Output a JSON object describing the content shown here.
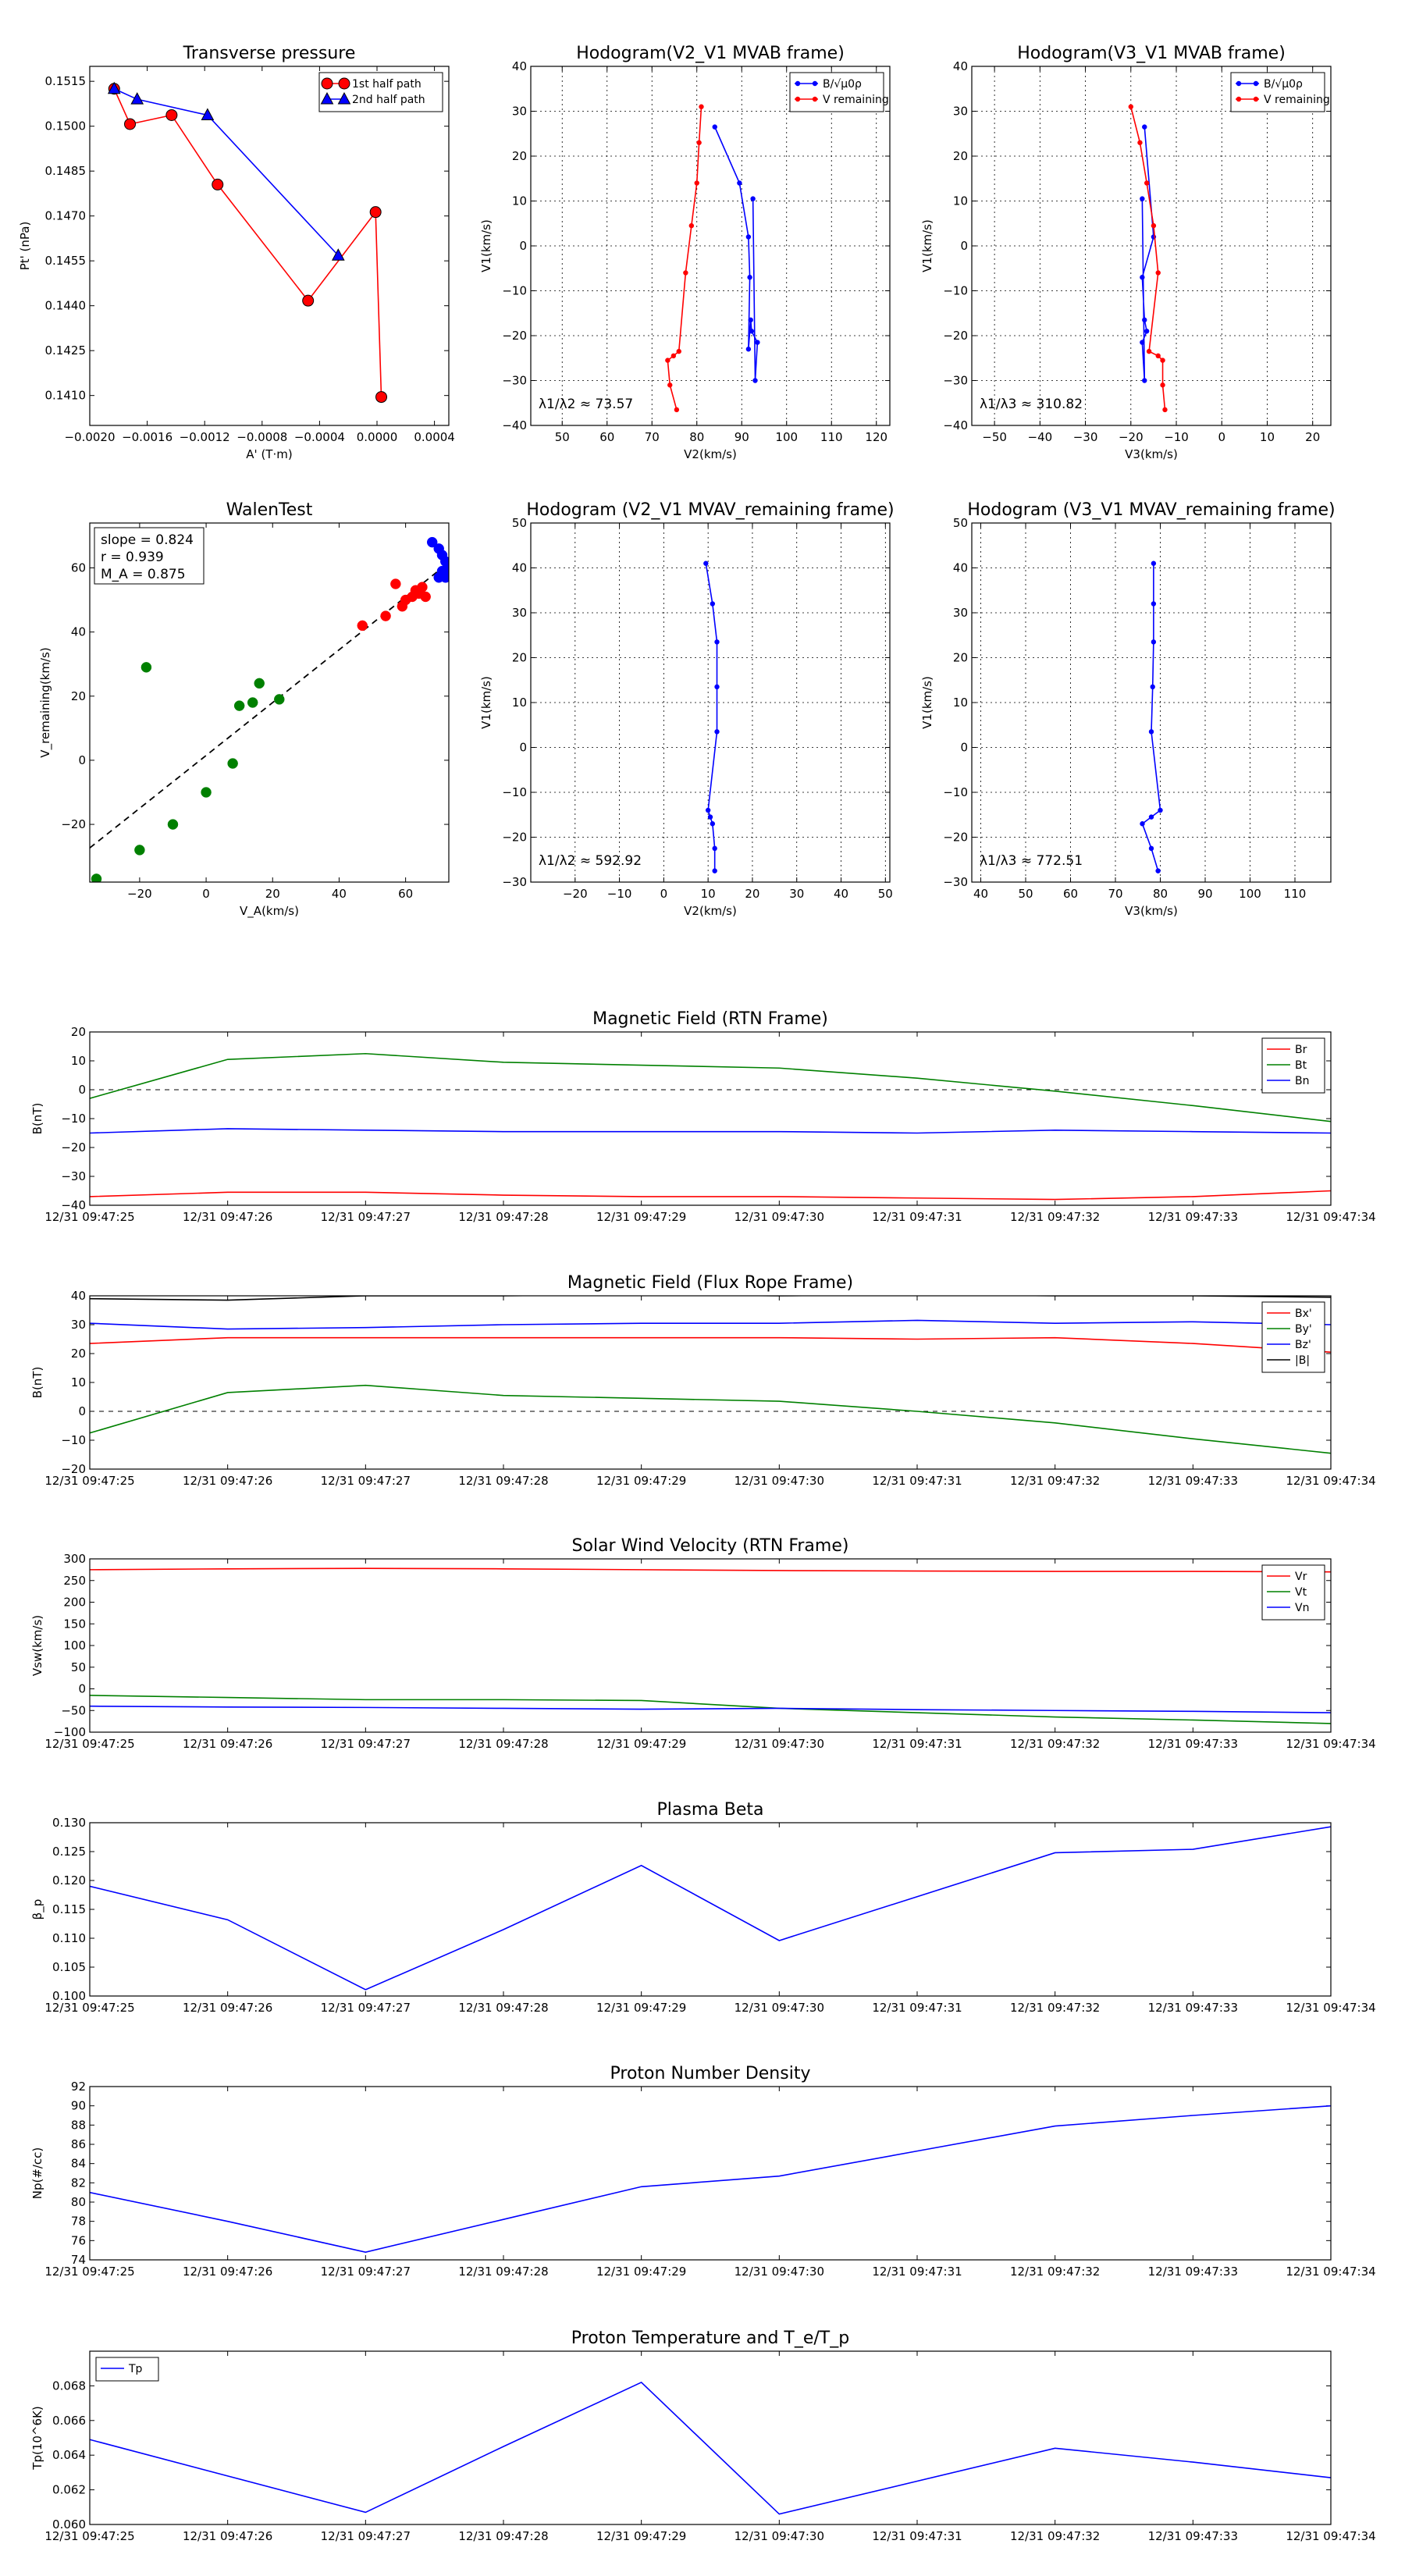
{
  "colors": {
    "red": "#ff0000",
    "green": "#008000",
    "blue": "#0000ff",
    "black": "#000000"
  },
  "chart_data": [
    {
      "type": "line",
      "title": "Transverse pressure",
      "xlabel": "A' (T·m)",
      "ylabel": "Pt' (nPa)",
      "xlim": [
        -0.002,
        0.0005
      ],
      "ylim": [
        0.14,
        0.152
      ],
      "xticks": [
        -0.002,
        -0.0016,
        -0.0012,
        -0.0008,
        -0.0004,
        0,
        0.0004
      ],
      "xtick_labels": [
        "−0.0020",
        "−0.0016",
        "−0.0012",
        "−0.0008",
        "−0.0004",
        "0.0000",
        "0.0004"
      ],
      "yticks": [
        0.141,
        0.1425,
        0.144,
        0.1455,
        0.147,
        0.1485,
        0.15,
        0.1515
      ],
      "ytick_labels": [
        "0.1410",
        "0.1425",
        "0.1440",
        "0.1455",
        "0.1470",
        "0.1485",
        "0.1500",
        "0.1515"
      ],
      "grid": false,
      "legend_loc": "top-right",
      "series": [
        {
          "name": "1st half path",
          "color": "red",
          "marker": "circle",
          "points": [
            [
              -0.00183,
              0.15125
            ],
            [
              -0.00172,
              0.15007
            ],
            [
              -0.00143,
              0.15037
            ],
            [
              -0.00111,
              0.14805
            ],
            [
              -0.00048,
              0.14417
            ],
            [
              -1e-05,
              0.14713
            ],
            [
              3e-05,
              0.14095
            ]
          ]
        },
        {
          "name": "2nd half path",
          "color": "blue",
          "marker": "triangle",
          "points": [
            [
              -0.00183,
              0.15125
            ],
            [
              -0.00167,
              0.1509
            ],
            [
              -0.00118,
              0.15037
            ],
            [
              -0.00027,
              0.14568
            ]
          ]
        }
      ]
    },
    {
      "type": "line",
      "title": "Hodogram(V2_V1 MVAB frame)",
      "xlabel": "V2(km/s)",
      "ylabel": "V1(km/s)",
      "xlim": [
        43,
        123
      ],
      "ylim": [
        -40,
        40
      ],
      "xticks": [
        50,
        60,
        70,
        80,
        90,
        100,
        110,
        120
      ],
      "yticks": [
        -40,
        -30,
        -20,
        -10,
        0,
        10,
        20,
        30,
        40
      ],
      "grid": true,
      "legend_loc": "top-right",
      "annotation": "λ1/λ2 ≈ 73.57",
      "series": [
        {
          "name": "B/√μ0ρ",
          "color": "blue",
          "marker": "dot",
          "points": [
            [
              84,
              26.5
            ],
            [
              89.5,
              14
            ],
            [
              91.5,
              2
            ],
            [
              91.8,
              -7
            ],
            [
              91.5,
              -23
            ],
            [
              92,
              -16.5
            ],
            [
              92.2,
              -19
            ],
            [
              93.5,
              -21.5
            ],
            [
              93,
              -30
            ],
            [
              92.5,
              10.5
            ]
          ]
        },
        {
          "name": "V remaining",
          "color": "red",
          "marker": "dot",
          "points": [
            [
              81,
              31
            ],
            [
              80.5,
              23
            ],
            [
              80,
              14
            ],
            [
              78.8,
              4.5
            ],
            [
              77.5,
              -6
            ],
            [
              76,
              -23.5
            ],
            [
              74.8,
              -24.5
            ],
            [
              73.5,
              -25.5
            ],
            [
              74,
              -31
            ],
            [
              75.5,
              -36.5
            ]
          ]
        }
      ]
    },
    {
      "type": "line",
      "title": "Hodogram(V3_V1 MVAB frame)",
      "xlabel": "V3(km/s)",
      "ylabel": "V1(km/s)",
      "xlim": [
        -55,
        24
      ],
      "ylim": [
        -40,
        40
      ],
      "xticks": [
        -50,
        -40,
        -30,
        -20,
        -10,
        0,
        10,
        20
      ],
      "yticks": [
        -40,
        -30,
        -20,
        -10,
        0,
        10,
        20,
        30,
        40
      ],
      "grid": true,
      "legend_loc": "top-right",
      "annotation": "λ1/λ3 ≈ 310.82",
      "series": [
        {
          "name": "B/√μ0ρ",
          "color": "blue",
          "marker": "dot",
          "points": [
            [
              -17,
              26.5
            ],
            [
              -15,
              2
            ],
            [
              -17.5,
              -7
            ],
            [
              -17,
              -16.5
            ],
            [
              -16.5,
              -19
            ],
            [
              -17.5,
              -21.5
            ],
            [
              -17,
              -30
            ],
            [
              -17.5,
              10.5
            ]
          ]
        },
        {
          "name": "V remaining",
          "color": "red",
          "marker": "dot",
          "points": [
            [
              -20,
              31
            ],
            [
              -18,
              23
            ],
            [
              -16.5,
              14
            ],
            [
              -15,
              4.5
            ],
            [
              -14,
              -6
            ],
            [
              -16,
              -23.5
            ],
            [
              -14,
              -24.5
            ],
            [
              -13,
              -25.5
            ],
            [
              -13,
              -31
            ],
            [
              -12.5,
              -36.5
            ]
          ]
        }
      ]
    },
    {
      "type": "scatter",
      "title": "WalenTest",
      "xlabel": "V_A(km/s)",
      "ylabel": "V_remaining(km/s)",
      "xlim": [
        -35,
        73
      ],
      "ylim": [
        -38,
        74
      ],
      "xticks": [
        -20,
        0,
        20,
        40,
        60
      ],
      "yticks": [
        -20,
        0,
        20,
        40,
        60
      ],
      "grid": false,
      "fit_line": {
        "slope": 0.824,
        "intercept": 1.5,
        "style": "dashed"
      },
      "stats": [
        "slope = 0.824",
        "r = 0.939",
        "M_A = 0.875"
      ],
      "series": [
        {
          "name": "green",
          "color": "green",
          "points": [
            [
              -33,
              -37
            ],
            [
              -20,
              -28
            ],
            [
              -18,
              29
            ],
            [
              -10,
              -20
            ],
            [
              0,
              -10
            ],
            [
              8,
              -1
            ],
            [
              10,
              17
            ],
            [
              14,
              18
            ],
            [
              16,
              24
            ],
            [
              22,
              19
            ]
          ]
        },
        {
          "name": "red",
          "color": "red",
          "points": [
            [
              47,
              42
            ],
            [
              54,
              45
            ],
            [
              57,
              55
            ],
            [
              59,
              48
            ],
            [
              60,
              50
            ],
            [
              62,
              51
            ],
            [
              63,
              53
            ],
            [
              64,
              52
            ],
            [
              65,
              54
            ],
            [
              66,
              51
            ]
          ]
        },
        {
          "name": "blue",
          "color": "blue",
          "points": [
            [
              68,
              68
            ],
            [
              70,
              66
            ],
            [
              71,
              64
            ],
            [
              72,
              62
            ],
            [
              73,
              60
            ],
            [
              70,
              57
            ],
            [
              72,
              57
            ],
            [
              73,
              58
            ],
            [
              74,
              61
            ],
            [
              71,
              59
            ]
          ]
        }
      ]
    },
    {
      "type": "line",
      "title": "Hodogram (V2_V1 MVAV_remaining frame)",
      "xlabel": "V2(km/s)",
      "ylabel": "V1(km/s)",
      "xlim": [
        -30,
        51
      ],
      "ylim": [
        -30,
        50
      ],
      "xticks": [
        -20,
        -10,
        0,
        10,
        20,
        30,
        40,
        50
      ],
      "yticks": [
        -30,
        -20,
        -10,
        0,
        10,
        20,
        30,
        40,
        50
      ],
      "grid": true,
      "annotation": "λ1/λ2 ≈ 592.92",
      "series": [
        {
          "name": "V",
          "color": "blue",
          "marker": "dot",
          "points": [
            [
              9.5,
              41
            ],
            [
              11,
              32
            ],
            [
              12,
              23.5
            ],
            [
              12,
              13.5
            ],
            [
              12,
              3.5
            ],
            [
              10,
              -14
            ],
            [
              10.5,
              -15.5
            ],
            [
              11,
              -17
            ],
            [
              11.5,
              -22.5
            ],
            [
              11.5,
              -27.5
            ]
          ]
        }
      ]
    },
    {
      "type": "line",
      "title": "Hodogram (V3_V1 MVAV_remaining frame)",
      "xlabel": "V3(km/s)",
      "ylabel": "V1(km/s)",
      "xlim": [
        38,
        118
      ],
      "ylim": [
        -30,
        50
      ],
      "xticks": [
        40,
        50,
        60,
        70,
        80,
        90,
        100,
        110
      ],
      "yticks": [
        -30,
        -20,
        -10,
        0,
        10,
        20,
        30,
        40,
        50
      ],
      "grid": true,
      "annotation": "λ1/λ3 ≈ 772.51",
      "series": [
        {
          "name": "V",
          "color": "blue",
          "marker": "dot",
          "points": [
            [
              78.5,
              41
            ],
            [
              78.5,
              32
            ],
            [
              78.5,
              23.5
            ],
            [
              78.3,
              13.5
            ],
            [
              78,
              3.5
            ],
            [
              80,
              -14
            ],
            [
              78,
              -15.5
            ],
            [
              76,
              -17
            ],
            [
              78,
              -22.5
            ],
            [
              79.5,
              -27.5
            ]
          ]
        }
      ]
    },
    {
      "type": "line",
      "title": "Magnetic Field (RTN Frame)",
      "ylabel": "B(nT)",
      "ylim": [
        -40,
        20
      ],
      "yticks": [
        -40,
        -30,
        -20,
        -10,
        0,
        10,
        20
      ],
      "categories": [
        "12/31 09:47:25",
        "12/31 09:47:26",
        "12/31 09:47:27",
        "12/31 09:47:28",
        "12/31 09:47:29",
        "12/31 09:47:30",
        "12/31 09:47:31",
        "12/31 09:47:32",
        "12/31 09:47:33",
        "12/31 09:47:34"
      ],
      "hline": 0,
      "legend_loc": "top-right",
      "series": [
        {
          "name": "Br",
          "color": "red",
          "values": [
            -37,
            -35.5,
            -35.5,
            -36.5,
            -37,
            -37,
            -37.5,
            -38,
            -37,
            -35
          ]
        },
        {
          "name": "Bt",
          "color": "green",
          "values": [
            -3,
            10.5,
            12.5,
            9.5,
            8.5,
            7.5,
            4,
            -0.5,
            -5.5,
            -11
          ]
        },
        {
          "name": "Bn",
          "color": "blue",
          "values": [
            -15,
            -13.5,
            -14,
            -14.5,
            -14.5,
            -14.5,
            -15,
            -14,
            -14.5,
            -15
          ]
        }
      ]
    },
    {
      "type": "line",
      "title": "Magnetic Field (Flux Rope Frame)",
      "ylabel": "B(nT)",
      "ylim": [
        -20,
        40
      ],
      "yticks": [
        -20,
        -10,
        0,
        10,
        20,
        30,
        40
      ],
      "categories": [
        "12/31 09:47:25",
        "12/31 09:47:26",
        "12/31 09:47:27",
        "12/31 09:47:28",
        "12/31 09:47:29",
        "12/31 09:47:30",
        "12/31 09:47:31",
        "12/31 09:47:32",
        "12/31 09:47:33",
        "12/31 09:47:34"
      ],
      "hline": 0,
      "legend_loc": "top-right",
      "series": [
        {
          "name": "Bx'",
          "color": "red",
          "values": [
            23.5,
            25.5,
            25.5,
            25.5,
            25.5,
            25.5,
            25,
            25.5,
            23.5,
            20.5
          ]
        },
        {
          "name": "By'",
          "color": "green",
          "values": [
            -7.5,
            6.5,
            9,
            5.5,
            4.5,
            3.5,
            0,
            -4,
            -9.5,
            -14.5
          ]
        },
        {
          "name": "Bz'",
          "color": "blue",
          "values": [
            30.5,
            28.5,
            29,
            30,
            30.5,
            30.5,
            31.5,
            30.5,
            31,
            30
          ]
        },
        {
          "name": "|B|",
          "color": "black",
          "values": [
            39,
            38.5,
            40,
            40,
            40.5,
            40,
            40.5,
            40,
            40,
            39.5
          ]
        }
      ]
    },
    {
      "type": "line",
      "title": "Solar Wind Velocity (RTN Frame)",
      "ylabel": "Vsw(km/s)",
      "ylim": [
        -100,
        300
      ],
      "yticks": [
        -100,
        -50,
        0,
        50,
        100,
        150,
        200,
        250,
        300
      ],
      "categories": [
        "12/31 09:47:25",
        "12/31 09:47:26",
        "12/31 09:47:27",
        "12/31 09:47:28",
        "12/31 09:47:29",
        "12/31 09:47:30",
        "12/31 09:47:31",
        "12/31 09:47:32",
        "12/31 09:47:33",
        "12/31 09:47:34"
      ],
      "legend_loc": "top-right",
      "series": [
        {
          "name": "Vr",
          "color": "red",
          "values": [
            275,
            277,
            278,
            277,
            275,
            273,
            272,
            271,
            271,
            270
          ]
        },
        {
          "name": "Vt",
          "color": "green",
          "values": [
            -15,
            -20,
            -25,
            -25,
            -27,
            -45,
            -55,
            -65,
            -72,
            -80
          ]
        },
        {
          "name": "Vn",
          "color": "blue",
          "values": [
            -40,
            -42,
            -43,
            -45,
            -47,
            -45,
            -48,
            -50,
            -52,
            -55
          ]
        }
      ]
    },
    {
      "type": "line",
      "title": "Plasma Beta",
      "ylabel": "β_p",
      "ylim": [
        0.1,
        0.13
      ],
      "yticks": [
        0.1,
        0.105,
        0.11,
        0.115,
        0.12,
        0.125,
        0.13
      ],
      "ytick_labels": [
        "0.100",
        "0.105",
        "0.110",
        "0.115",
        "0.120",
        "0.125",
        "0.130"
      ],
      "categories": [
        "12/31 09:47:25",
        "12/31 09:47:26",
        "12/31 09:47:27",
        "12/31 09:47:28",
        "12/31 09:47:29",
        "12/31 09:47:30",
        "12/31 09:47:31",
        "12/31 09:47:32",
        "12/31 09:47:33",
        "12/31 09:47:34"
      ],
      "series": [
        {
          "name": "beta",
          "color": "blue",
          "values": [
            0.119,
            0.1132,
            0.1011,
            0.1115,
            0.1226,
            0.1096,
            0.1172,
            0.1248,
            0.1254,
            0.1293
          ]
        }
      ]
    },
    {
      "type": "line",
      "title": "Proton Number Density",
      "ylabel": "Np(#/cc)",
      "ylim": [
        74,
        92
      ],
      "yticks": [
        74,
        76,
        78,
        80,
        82,
        84,
        86,
        88,
        90,
        92
      ],
      "categories": [
        "12/31 09:47:25",
        "12/31 09:47:26",
        "12/31 09:47:27",
        "12/31 09:47:28",
        "12/31 09:47:29",
        "12/31 09:47:30",
        "12/31 09:47:31",
        "12/31 09:47:32",
        "12/31 09:47:33",
        "12/31 09:47:34"
      ],
      "series": [
        {
          "name": "Np",
          "color": "blue",
          "values": [
            81,
            78,
            74.8,
            78.2,
            81.6,
            82.7,
            85.3,
            87.9,
            89,
            90
          ]
        }
      ]
    },
    {
      "type": "line",
      "title": "Proton Temperature and T_e/T_p",
      "ylabel": "Tp(10^6K)",
      "ylim": [
        0.06,
        0.07
      ],
      "yticks": [
        0.06,
        0.062,
        0.064,
        0.066,
        0.068
      ],
      "ytick_labels": [
        "0.060",
        "0.062",
        "0.064",
        "0.066",
        "0.068"
      ],
      "categories": [
        "12/31 09:47:25",
        "12/31 09:47:26",
        "12/31 09:47:27",
        "12/31 09:47:28",
        "12/31 09:47:29",
        "12/31 09:47:30",
        "12/31 09:47:31",
        "12/31 09:47:32",
        "12/31 09:47:33",
        "12/31 09:47:34"
      ],
      "legend_loc": "top-left",
      "series": [
        {
          "name": "Tp",
          "color": "blue",
          "values": [
            0.0649,
            0.0628,
            0.0607,
            0.0645,
            0.0682,
            0.0606,
            0.0625,
            0.0644,
            0.0636,
            0.0627
          ]
        }
      ]
    }
  ]
}
